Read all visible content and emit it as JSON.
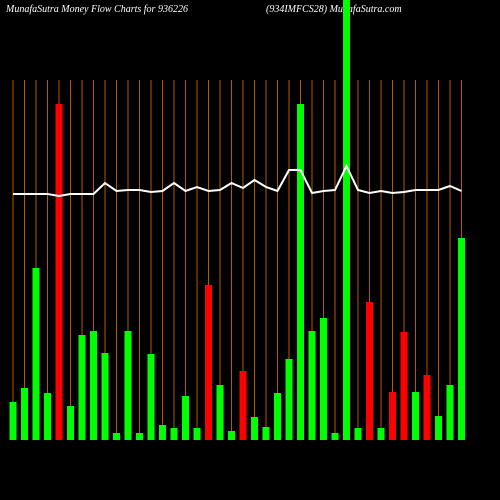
{
  "chart_data": {
    "type": "bar",
    "title": "MunafaSutra  Money Flow  Charts for 936226",
    "subtitle": "(934IMFCS28) MunafaSutra.com",
    "categories": [
      null,
      null,
      null,
      null,
      null,
      null,
      null,
      null,
      null,
      null,
      null,
      null,
      null,
      null,
      null,
      null,
      null,
      null,
      null,
      null,
      null,
      null,
      null,
      null,
      null,
      null,
      null,
      null,
      null,
      null,
      null,
      null,
      null,
      null,
      null,
      null,
      null,
      null,
      null,
      null
    ],
    "series": [
      {
        "type": "bar",
        "values": [
          38,
          52,
          172,
          47,
          336,
          34,
          105,
          109,
          87,
          7,
          109,
          7,
          86,
          15,
          12,
          44,
          12,
          155,
          55,
          9,
          69,
          23,
          13,
          47,
          81,
          336,
          109,
          122,
          7,
          440,
          12,
          138,
          12,
          48,
          108,
          48,
          65,
          24,
          55,
          202
        ],
        "colors": [
          "#00ff00",
          "#00ff00",
          "#00ff00",
          "#00ff00",
          "#ff0000",
          "#00ff00",
          "#00ff00",
          "#00ff00",
          "#00ff00",
          "#00ff00",
          "#00ff00",
          "#00ff00",
          "#00ff00",
          "#00ff00",
          "#00ff00",
          "#00ff00",
          "#00ff00",
          "#ff0000",
          "#00ff00",
          "#00ff00",
          "#ff0000",
          "#00ff00",
          "#00ff00",
          "#00ff00",
          "#00ff00",
          "#00ff00",
          "#00ff00",
          "#00ff00",
          "#00ff00",
          "#00ff00",
          "#00ff00",
          "#ff0000",
          "#00ff00",
          "#ff0000",
          "#ff0000",
          "#00ff00",
          "#ff0000",
          "#00ff00",
          "#00ff00",
          "#00ff00"
        ]
      },
      {
        "type": "line",
        "color": "#ffffff",
        "values": [
          246,
          246,
          246,
          246,
          244,
          246,
          246,
          246,
          257,
          249,
          250,
          250,
          248,
          249,
          257,
          249,
          253,
          249,
          250,
          257,
          252,
          260,
          253,
          249,
          270,
          270,
          247,
          249,
          250,
          274,
          250,
          247,
          249,
          247,
          248,
          250,
          250,
          250,
          254,
          249
        ]
      }
    ],
    "ylim": [
      0,
      440
    ],
    "grid": true,
    "grid_color": "#b35900"
  }
}
